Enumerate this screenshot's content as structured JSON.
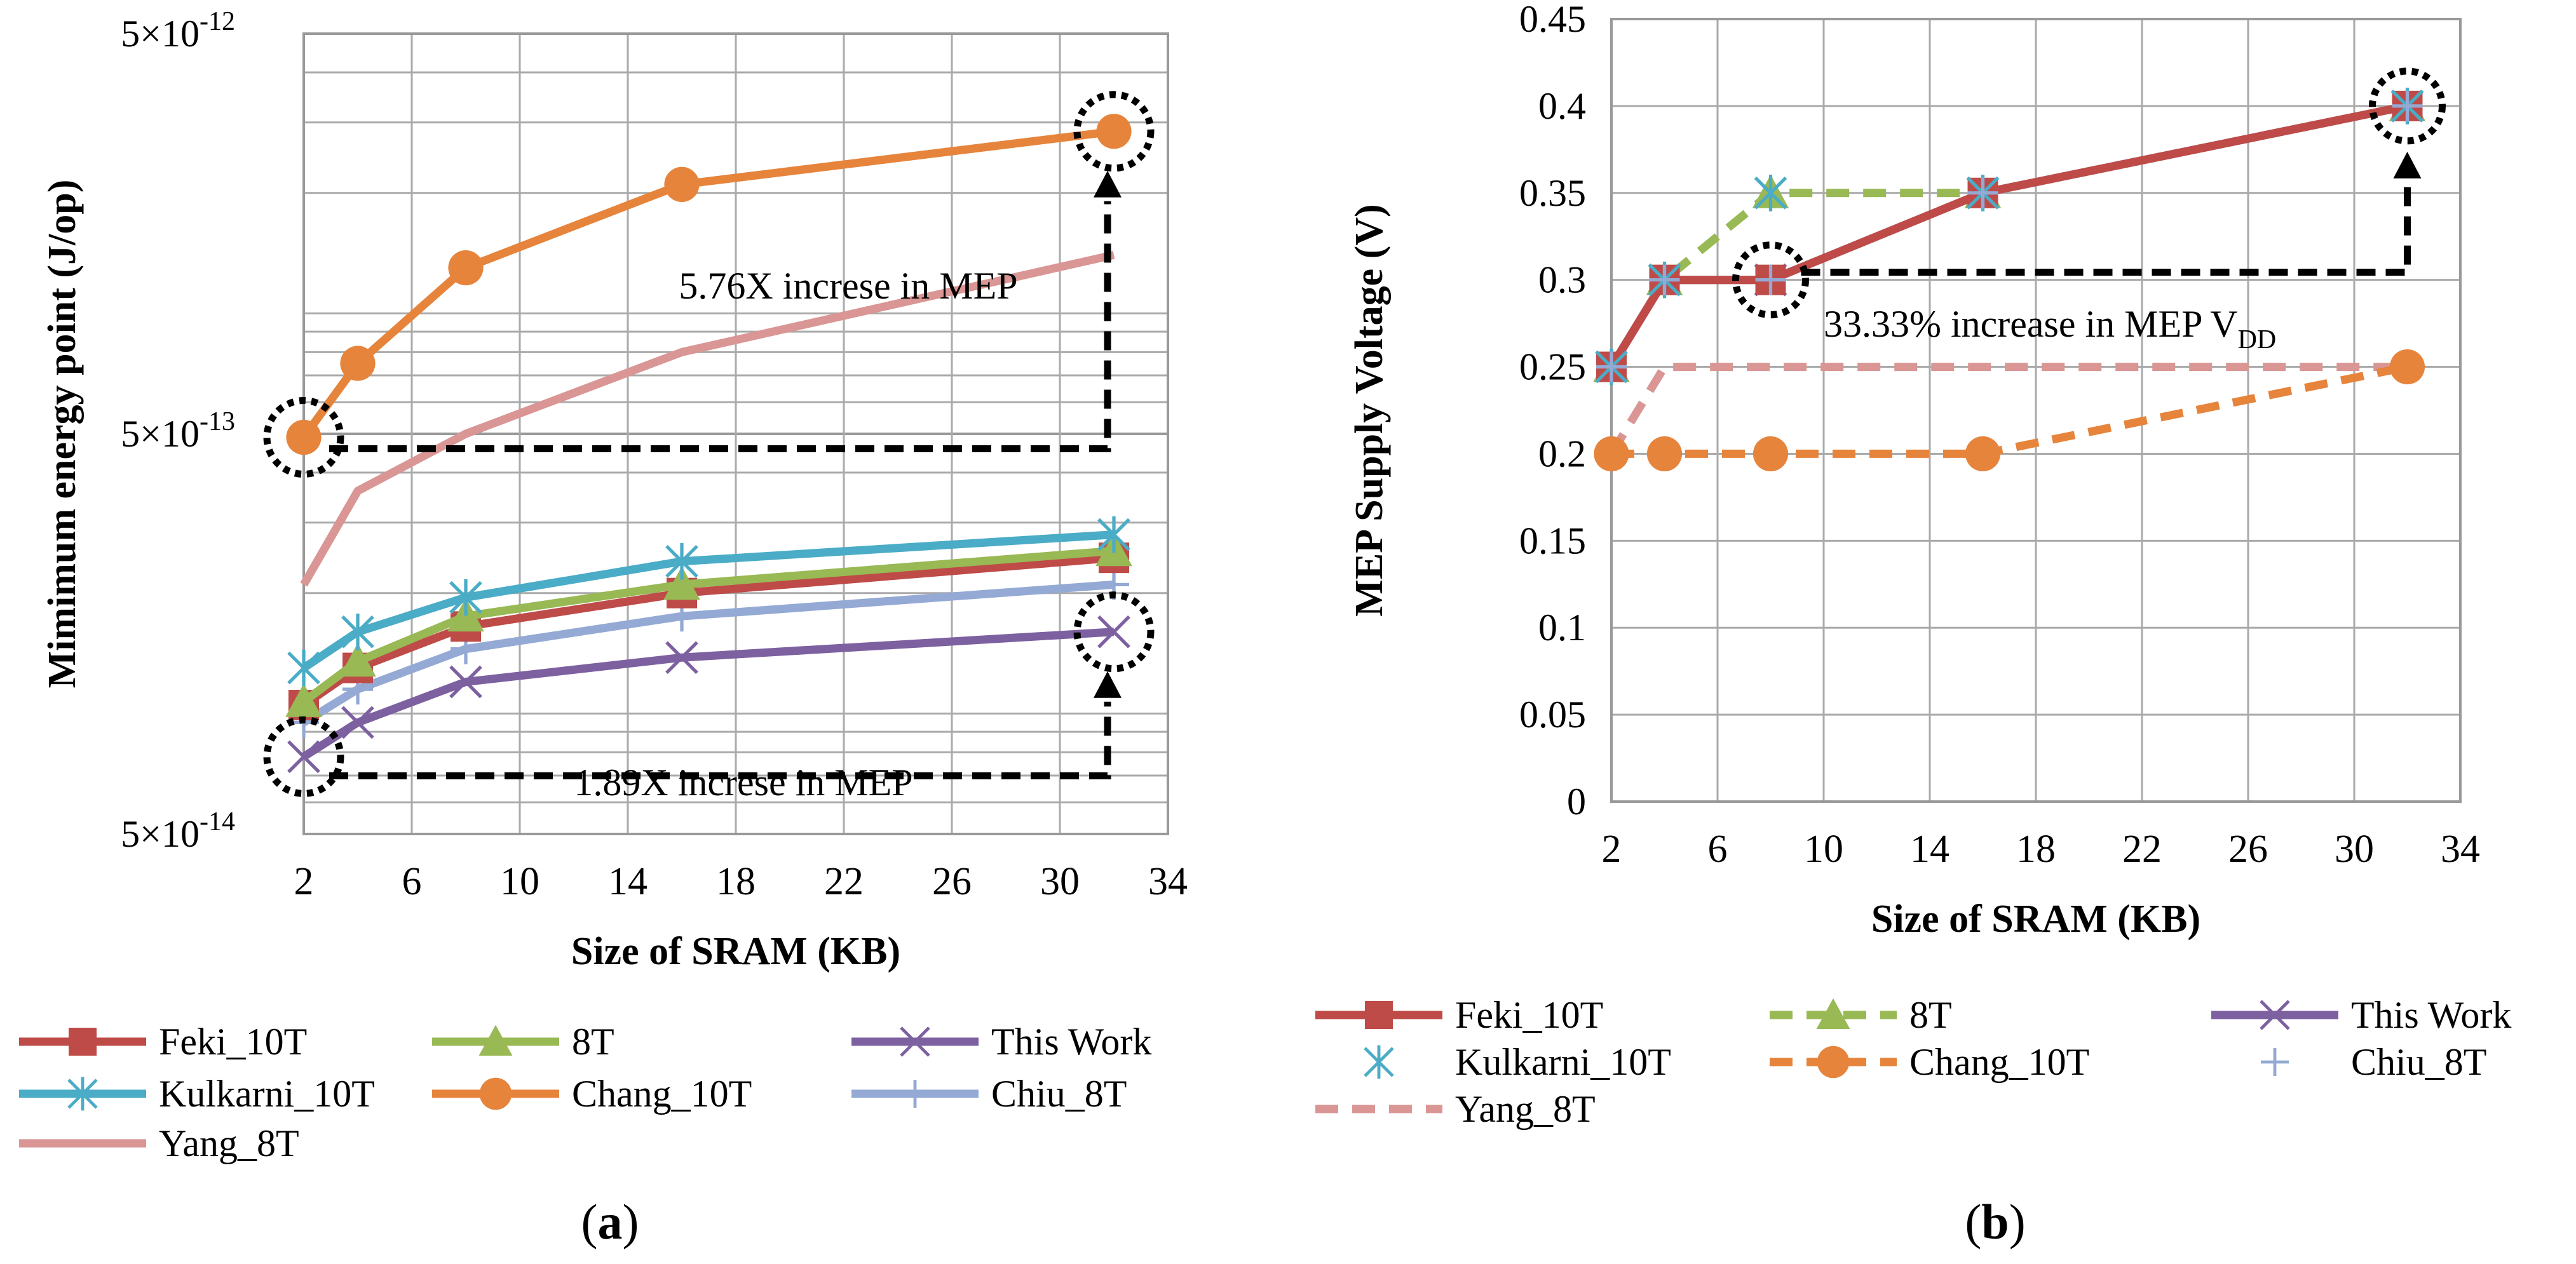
{
  "chart_data": [
    {
      "id": "a",
      "type": "line",
      "panel_label": "a",
      "xlabel": "Size of SRAM (KB)",
      "ylabel": "Mimimum energy point (J/op)",
      "xlim": [
        2,
        34
      ],
      "xticks": [
        "2",
        "6",
        "10",
        "14",
        "18",
        "22",
        "26",
        "30",
        "34"
      ],
      "yscale": "log",
      "ylim": [
        5e-14,
        5e-12
      ],
      "yticks": [
        {
          "value": 5e-12,
          "label": "5×10",
          "exp": "-12"
        },
        {
          "value": 5e-13,
          "label": "5×10",
          "exp": "-13"
        },
        {
          "value": 5e-14,
          "label": "5×10",
          "exp": "-14"
        }
      ],
      "x": [
        2,
        4,
        8,
        16,
        32
      ],
      "series": [
        {
          "name": "Feki_10T",
          "color": "#be4b48",
          "marker": "square",
          "dash": false,
          "values": [
            1.05e-13,
            1.3e-13,
            1.65e-13,
            2e-13,
            2.45e-13
          ]
        },
        {
          "name": "8T",
          "color": "#98b954",
          "marker": "triangle",
          "dash": false,
          "values": [
            1.07e-13,
            1.35e-13,
            1.75e-13,
            2.1e-13,
            2.55e-13
          ]
        },
        {
          "name": "This Work",
          "color": "#7d60a0",
          "marker": "x",
          "dash": false,
          "values": [
            7.8e-14,
            9.5e-14,
            1.2e-13,
            1.38e-13,
            1.6e-13
          ]
        },
        {
          "name": "Kulkarni_10T",
          "color": "#4aacc6",
          "marker": "asterisk",
          "dash": false,
          "values": [
            1.3e-13,
            1.6e-13,
            1.95e-13,
            2.4e-13,
            2.8e-13
          ]
        },
        {
          "name": "Chang_10T",
          "color": "#e6843c",
          "marker": "circle",
          "dash": false,
          "values": [
            4.9e-13,
            7.5e-13,
            1.3e-12,
            2.1e-12,
            2.85e-12
          ]
        },
        {
          "name": "Chiu_8T",
          "color": "#94a9d4",
          "marker": "plus",
          "dash": false,
          "values": [
            9.5e-14,
            1.15e-13,
            1.45e-13,
            1.75e-13,
            2.1e-13
          ]
        },
        {
          "name": "Yang_8T",
          "color": "#d99694",
          "marker": "none",
          "dash": false,
          "values": [
            2.1e-13,
            3.6e-13,
            5e-13,
            8e-13,
            1.4e-12
          ]
        }
      ],
      "annotations": [
        {
          "text": "5.76X increse in MEP"
        },
        {
          "text": "1.89X increse in MEP"
        }
      ]
    },
    {
      "id": "b",
      "type": "line",
      "panel_label": "b",
      "xlabel": "Size of SRAM (KB)",
      "ylabel": "MEP Supply Voltage (V)",
      "xlim": [
        2,
        34
      ],
      "xticks": [
        "2",
        "6",
        "10",
        "14",
        "18",
        "22",
        "26",
        "30",
        "34"
      ],
      "ylim": [
        0,
        0.45
      ],
      "yticks": [
        "0",
        "0.05",
        "0.1",
        "0.15",
        "0.2",
        "0.25",
        "0.3",
        "0.35",
        "0.4",
        "0.45"
      ],
      "x": [
        2,
        4,
        8,
        16,
        32
      ],
      "series": [
        {
          "name": "Feki_10T",
          "color": "#be4b48",
          "marker": "square",
          "dash": false,
          "values": [
            0.25,
            0.3,
            0.3,
            0.35,
            0.4
          ]
        },
        {
          "name": "8T",
          "color": "#98b954",
          "marker": "triangle",
          "dash": true,
          "values": [
            0.25,
            0.3,
            0.35,
            0.35,
            0.4
          ]
        },
        {
          "name": "This Work",
          "color": "#7d60a0",
          "marker": "x",
          "dash": false,
          "values": [
            0.25,
            0.3,
            0.3,
            0.35,
            0.4
          ]
        },
        {
          "name": "Kulkarni_10T",
          "color": "#4aacc6",
          "marker": "asterisk",
          "dash": false,
          "noline": true,
          "values": [
            0.25,
            0.3,
            0.35,
            0.35,
            0.4
          ]
        },
        {
          "name": "Chang_10T",
          "color": "#e6843c",
          "marker": "circle",
          "dash": true,
          "values": [
            0.2,
            0.2,
            0.2,
            0.2,
            0.25
          ]
        },
        {
          "name": "Chiu_8T",
          "color": "#94a9d4",
          "marker": "plus",
          "dash": false,
          "noline": true,
          "values": [
            0.25,
            0.3,
            0.3,
            0.35,
            0.4
          ]
        },
        {
          "name": "Yang_8T",
          "color": "#d99694",
          "marker": "none",
          "dash": true,
          "values": [
            0.2,
            0.25,
            0.25,
            0.25,
            0.25
          ]
        }
      ],
      "annotations": [
        {
          "text": "33.33% increase in MEP V",
          "sub": "DD"
        }
      ]
    }
  ]
}
